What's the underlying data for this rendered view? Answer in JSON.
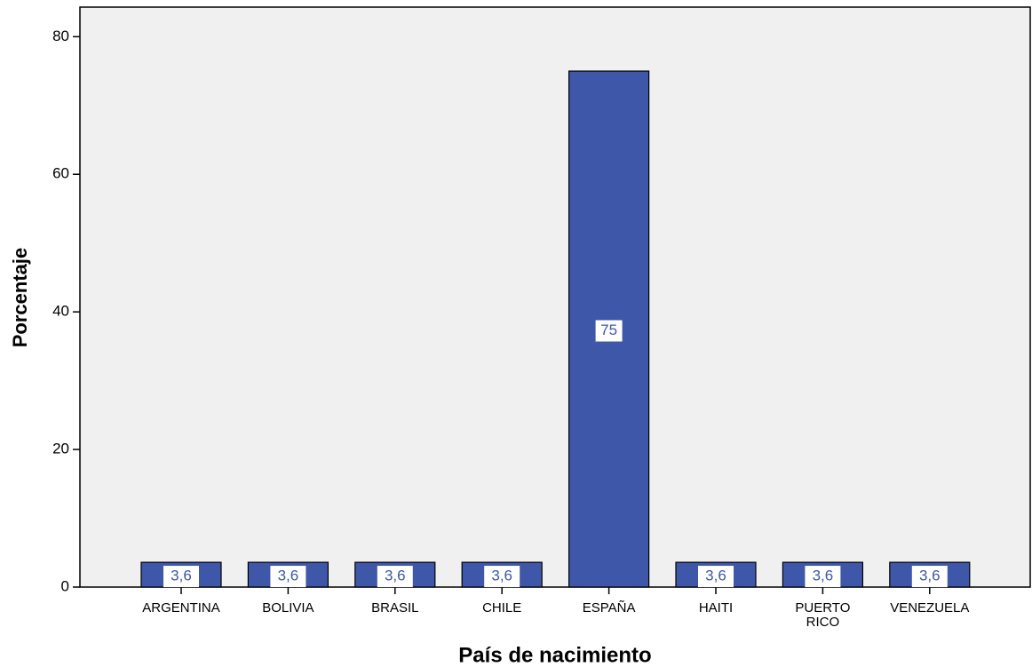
{
  "chart_data": {
    "type": "bar",
    "xlabel": "País de nacimiento",
    "ylabel": "Porcentaje",
    "categories": [
      "ARGENTINA",
      "BOLIVIA",
      "BRASIL",
      "CHILE",
      "ESPAÑA",
      "HAITI",
      "PUERTO RICO",
      "VENEZUELA"
    ],
    "values": [
      3.6,
      3.6,
      3.6,
      3.6,
      75,
      3.6,
      3.6,
      3.6
    ],
    "value_labels": [
      "3,6",
      "3,6",
      "3,6",
      "3,6",
      "75",
      "3,6",
      "3,6",
      "3,6"
    ],
    "color": "#3f57a9",
    "ylim": [
      0,
      84.3
    ],
    "yticks": [
      0,
      20,
      40,
      60,
      80
    ]
  }
}
